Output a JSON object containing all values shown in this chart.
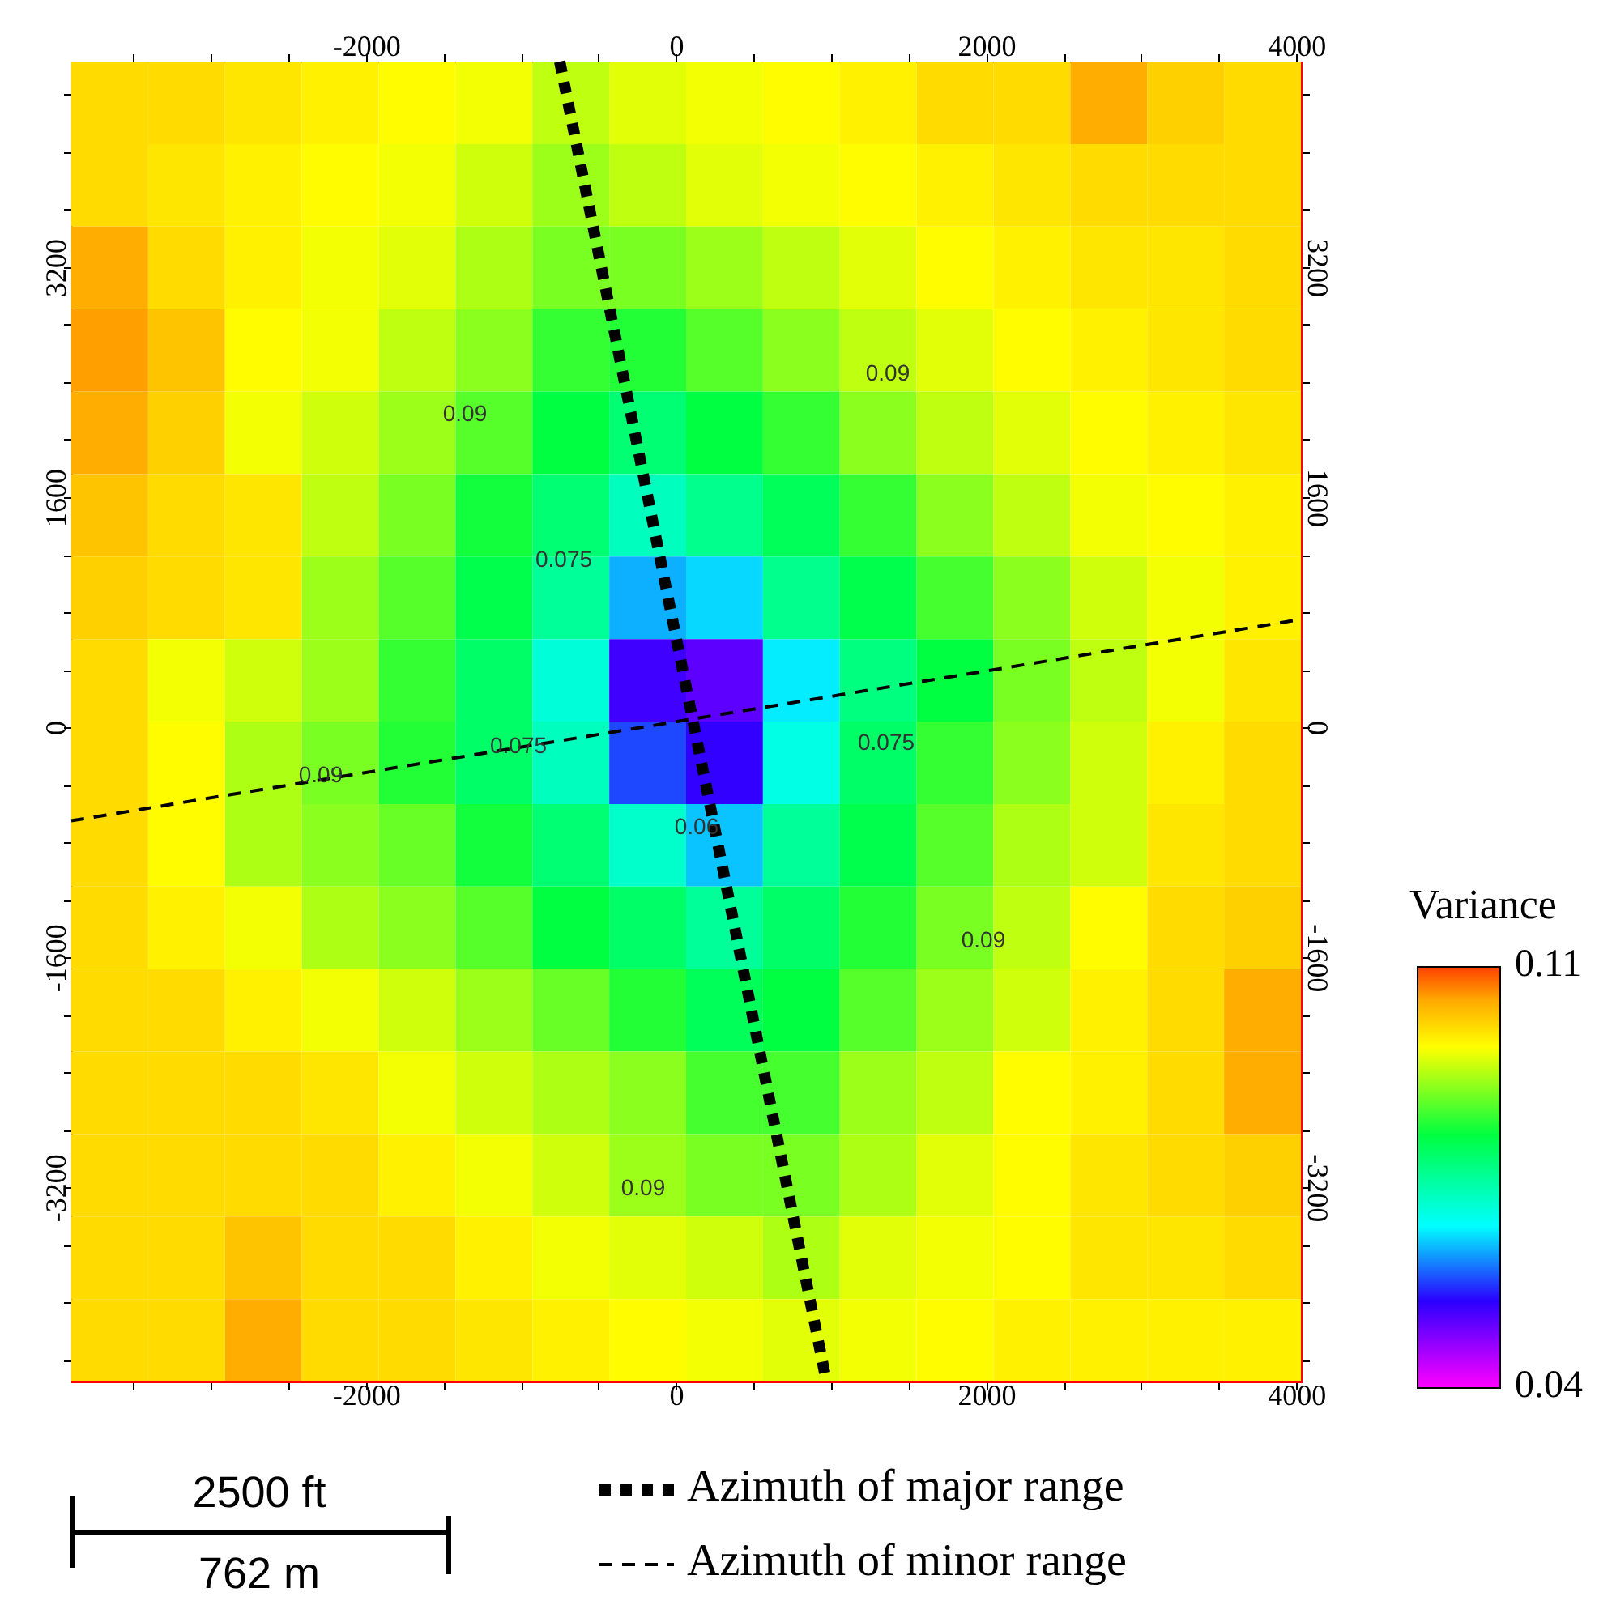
{
  "chart_data": {
    "type": "heatmap",
    "cells": [
      [
        0.1,
        0.1,
        0.099,
        0.098,
        0.097,
        0.096,
        0.093,
        0.095,
        0.096,
        0.097,
        0.098,
        0.1,
        0.1,
        0.104,
        0.101,
        0.1
      ],
      [
        0.1,
        0.099,
        0.098,
        0.097,
        0.096,
        0.094,
        0.091,
        0.093,
        0.095,
        0.096,
        0.097,
        0.098,
        0.099,
        0.1,
        0.1,
        0.1
      ],
      [
        0.104,
        0.1,
        0.098,
        0.096,
        0.095,
        0.092,
        0.089,
        0.089,
        0.091,
        0.093,
        0.095,
        0.097,
        0.098,
        0.099,
        0.099,
        0.1
      ],
      [
        0.105,
        0.102,
        0.097,
        0.096,
        0.093,
        0.09,
        0.085,
        0.084,
        0.087,
        0.09,
        0.093,
        0.095,
        0.097,
        0.098,
        0.099,
        0.1
      ],
      [
        0.104,
        0.101,
        0.096,
        0.094,
        0.091,
        0.087,
        0.082,
        0.078,
        0.082,
        0.085,
        0.09,
        0.093,
        0.095,
        0.097,
        0.098,
        0.099
      ],
      [
        0.102,
        0.1,
        0.099,
        0.093,
        0.089,
        0.083,
        0.078,
        0.072,
        0.076,
        0.08,
        0.085,
        0.09,
        0.093,
        0.096,
        0.097,
        0.098
      ],
      [
        0.101,
        0.1,
        0.099,
        0.091,
        0.087,
        0.081,
        0.075,
        0.063,
        0.065,
        0.076,
        0.081,
        0.086,
        0.09,
        0.094,
        0.096,
        0.098
      ],
      [
        0.1,
        0.096,
        0.094,
        0.091,
        0.085,
        0.079,
        0.07,
        0.053,
        0.051,
        0.066,
        0.077,
        0.082,
        0.089,
        0.093,
        0.096,
        0.099
      ],
      [
        0.1,
        0.097,
        0.092,
        0.089,
        0.084,
        0.079,
        0.072,
        0.058,
        0.054,
        0.069,
        0.079,
        0.085,
        0.09,
        0.094,
        0.098,
        0.1
      ],
      [
        0.1,
        0.097,
        0.092,
        0.09,
        0.088,
        0.083,
        0.078,
        0.071,
        0.064,
        0.075,
        0.081,
        0.087,
        0.092,
        0.094,
        0.099,
        0.1
      ],
      [
        0.1,
        0.098,
        0.096,
        0.092,
        0.09,
        0.087,
        0.082,
        0.079,
        0.075,
        0.079,
        0.084,
        0.089,
        0.093,
        0.097,
        0.1,
        0.101
      ],
      [
        0.1,
        0.1,
        0.098,
        0.096,
        0.094,
        0.091,
        0.088,
        0.084,
        0.08,
        0.082,
        0.087,
        0.091,
        0.094,
        0.098,
        0.1,
        0.104
      ],
      [
        0.1,
        0.1,
        0.1,
        0.099,
        0.096,
        0.094,
        0.092,
        0.09,
        0.086,
        0.086,
        0.091,
        0.093,
        0.097,
        0.098,
        0.1,
        0.104
      ],
      [
        0.1,
        0.1,
        0.1,
        0.1,
        0.098,
        0.096,
        0.094,
        0.091,
        0.089,
        0.089,
        0.092,
        0.095,
        0.097,
        0.099,
        0.1,
        0.101
      ],
      [
        0.1,
        0.1,
        0.102,
        0.1,
        0.1,
        0.098,
        0.096,
        0.095,
        0.094,
        0.092,
        0.095,
        0.096,
        0.097,
        0.099,
        0.099,
        0.1
      ],
      [
        0.1,
        0.1,
        0.104,
        0.1,
        0.1,
        0.099,
        0.098,
        0.097,
        0.096,
        0.095,
        0.096,
        0.097,
        0.098,
        0.098,
        0.098,
        0.098
      ]
    ],
    "clabel": "Variance",
    "clim": [
      0.04,
      0.11
    ],
    "cticks": [
      0.04,
      0.11
    ],
    "xlim": [
      -3900,
      4030
    ],
    "xticks": [
      {
        "value": -3500,
        "label": null
      },
      {
        "value": -3000,
        "label": null
      },
      {
        "value": -2500,
        "label": null
      },
      -2000,
      {
        "value": -1500,
        "label": null
      },
      {
        "value": -1000,
        "label": null
      },
      {
        "value": -500,
        "label": null
      },
      0,
      {
        "value": 500,
        "label": null
      },
      {
        "value": 1000,
        "label": null
      },
      {
        "value": 1500,
        "label": null
      },
      2000,
      {
        "value": 2500,
        "label": null
      },
      {
        "value": 3000,
        "label": null
      },
      {
        "value": 3500,
        "label": null
      },
      4000
    ],
    "x2lim": [
      -3900,
      4030
    ],
    "x2ticks": [
      {
        "value": -3500,
        "label": null
      },
      {
        "value": -3000,
        "label": null
      },
      {
        "value": -2500,
        "label": null
      },
      -2000,
      {
        "value": -1500,
        "label": null
      },
      {
        "value": -1000,
        "label": null
      },
      {
        "value": -500,
        "label": null
      },
      0,
      {
        "value": 500,
        "label": null
      },
      {
        "value": 1000,
        "label": null
      },
      {
        "value": 1500,
        "label": null
      },
      2000,
      {
        "value": 2500,
        "label": null
      },
      {
        "value": 3000,
        "label": null
      },
      {
        "value": 3500,
        "label": null
      },
      4000
    ],
    "ylim": [
      -4550,
      4630
    ],
    "yticks": [
      {
        "value": -4400,
        "label": null
      },
      {
        "value": -4000,
        "label": null
      },
      {
        "value": -3600,
        "label": null
      },
      -3200,
      {
        "value": -2800,
        "label": null
      },
      {
        "value": -2400,
        "label": null
      },
      {
        "value": -2000,
        "label": null
      },
      -1600,
      {
        "value": -1200,
        "label": null
      },
      {
        "value": -800,
        "label": null
      },
      {
        "value": -400,
        "label": null
      },
      0,
      {
        "value": 400,
        "label": null
      },
      {
        "value": 800,
        "label": null
      },
      {
        "value": 1200,
        "label": null
      },
      1600,
      {
        "value": 2000,
        "label": null
      },
      {
        "value": 2400,
        "label": null
      },
      {
        "value": 2800,
        "label": null
      },
      3200,
      {
        "value": 3600,
        "label": null
      },
      {
        "value": 4000,
        "label": null
      },
      {
        "value": 4400,
        "label": null
      }
    ],
    "y2lim": [
      -4550,
      4630
    ],
    "y2ticks": [
      {
        "value": -4400,
        "label": null
      },
      {
        "value": -4000,
        "label": null
      },
      {
        "value": -3600,
        "label": null
      },
      -3200,
      {
        "value": -2800,
        "label": null
      },
      {
        "value": -2400,
        "label": null
      },
      {
        "value": -2000,
        "label": null
      },
      -1600,
      {
        "value": -1200,
        "label": null
      },
      {
        "value": -800,
        "label": null
      },
      {
        "value": -400,
        "label": null
      },
      0,
      {
        "value": 400,
        "label": null
      },
      {
        "value": 800,
        "label": null
      },
      {
        "value": 1200,
        "label": null
      },
      1600,
      {
        "value": 2000,
        "label": null
      },
      {
        "value": 2400,
        "label": null
      },
      {
        "value": 2800,
        "label": null
      },
      3200,
      {
        "value": 3600,
        "label": null
      },
      {
        "value": 4000,
        "label": null
      },
      {
        "value": 4400,
        "label": null
      }
    ],
    "series": [
      {
        "name": "Azimuth of major range",
        "type": "line",
        "color": "#000000",
        "line_style": "dotted",
        "x": [
          -750,
          970
        ],
        "values": [
          4630,
          -4550
        ]
      },
      {
        "name": "Azimuth of minor range",
        "type": "line",
        "color": "#000000",
        "line_style": "dashed",
        "x": [
          -3900,
          4030
        ],
        "values": [
          -650,
          750
        ]
      }
    ],
    "legend": "bottom",
    "annotations": [
      "0.09",
      "0.09",
      "0.075",
      "0.09",
      "0.075",
      "0.06",
      "0.075",
      "0.09",
      "0.09",
      "2500 ft",
      "762 m"
    ]
  }
}
